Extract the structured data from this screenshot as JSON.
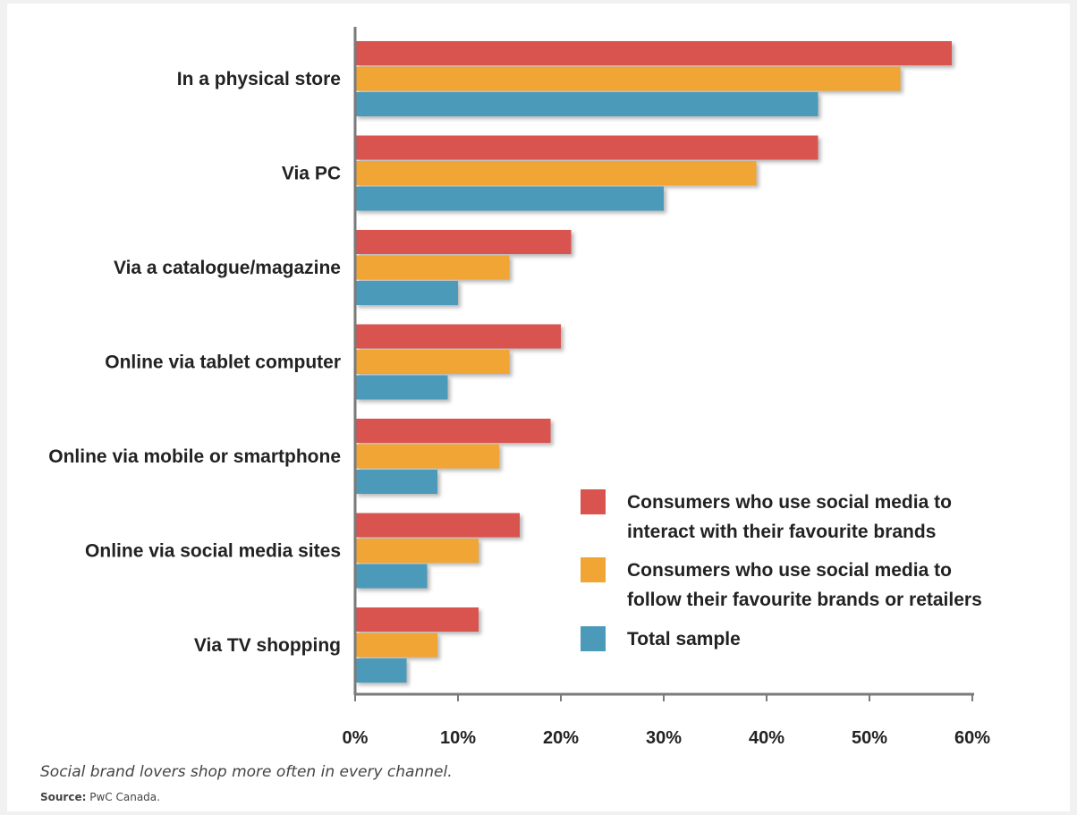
{
  "caption": "Social brand lovers shop more often in every channel.",
  "source": {
    "label": "Source:",
    "text": "PwC Canada."
  },
  "chart_data": {
    "type": "bar",
    "orientation": "horizontal",
    "title": "",
    "xlabel": "",
    "ylabel": "",
    "categories": [
      "In a physical store",
      "Via PC",
      "Via a catalogue/magazine",
      "Online via tablet computer",
      "Online via mobile or smartphone",
      "Online via social media sites",
      "Via TV shopping"
    ],
    "series": [
      {
        "name": "Consumers who use social media to interact with their favourite brands",
        "legend_lines": [
          "Consumers who use social media to",
          "interact with their favourite brands"
        ],
        "color": "#d9534f",
        "values": [
          58,
          45,
          21,
          20,
          19,
          16,
          12
        ]
      },
      {
        "name": "Consumers who use social media to follow their favourite brands or retailers",
        "legend_lines": [
          "Consumers who use social media to",
          "follow their favourite brands or retailers"
        ],
        "color": "#f0a535",
        "values": [
          53,
          39,
          15,
          15,
          14,
          12,
          8
        ]
      },
      {
        "name": "Total sample",
        "legend_lines": [
          "Total sample"
        ],
        "color": "#4b9ab9",
        "values": [
          45,
          30,
          10,
          9,
          8,
          7,
          5
        ]
      }
    ],
    "xlim": [
      0,
      60
    ],
    "xticks": [
      "0%",
      "10%",
      "20%",
      "30%",
      "40%",
      "50%",
      "60%"
    ],
    "grid": false,
    "legend_position": "bottom-right"
  }
}
